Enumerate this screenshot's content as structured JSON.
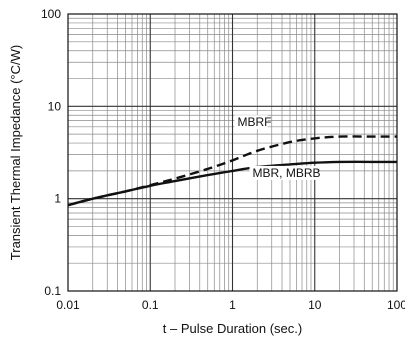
{
  "chart_data": {
    "type": "line",
    "title": "",
    "xlabel": "t – Pulse Duration (sec.)",
    "ylabel": "Transient Thermal Impedance (°C/W)",
    "x_scale": "log",
    "y_scale": "log",
    "xlim": [
      0.01,
      100
    ],
    "ylim": [
      0.1,
      100
    ],
    "grid": true,
    "x_ticks": [
      {
        "value": 0.01,
        "label": "0.01"
      },
      {
        "value": 0.1,
        "label": "0.1"
      },
      {
        "value": 1,
        "label": "1"
      },
      {
        "value": 10,
        "label": "10"
      },
      {
        "value": 100,
        "label": "100"
      }
    ],
    "y_ticks": [
      {
        "value": 0.1,
        "label": "0.1"
      },
      {
        "value": 1,
        "label": "1"
      },
      {
        "value": 10,
        "label": "10"
      },
      {
        "value": 100,
        "label": "100"
      }
    ],
    "series": [
      {
        "name": "MBRF",
        "style": "dashed",
        "color": "#111111",
        "x": [
          0.01,
          0.02,
          0.05,
          0.1,
          0.2,
          0.5,
          1,
          2,
          5,
          10,
          20,
          50,
          100
        ],
        "y": [
          0.85,
          1.0,
          1.2,
          1.4,
          1.65,
          2.1,
          2.6,
          3.3,
          4.1,
          4.5,
          4.7,
          4.7,
          4.7
        ]
      },
      {
        "name": "MBR, MBRB",
        "style": "solid",
        "color": "#111111",
        "x": [
          0.01,
          0.02,
          0.05,
          0.1,
          0.2,
          0.5,
          1,
          2,
          5,
          10,
          20,
          50,
          100
        ],
        "y": [
          0.85,
          1.0,
          1.2,
          1.38,
          1.55,
          1.8,
          2.0,
          2.2,
          2.35,
          2.45,
          2.5,
          2.5,
          2.5
        ]
      }
    ],
    "annotations": [
      {
        "text": "MBRF",
        "series": "MBRF"
      },
      {
        "text": "MBR, MBRB",
        "series": "MBR, MBRB"
      }
    ]
  }
}
